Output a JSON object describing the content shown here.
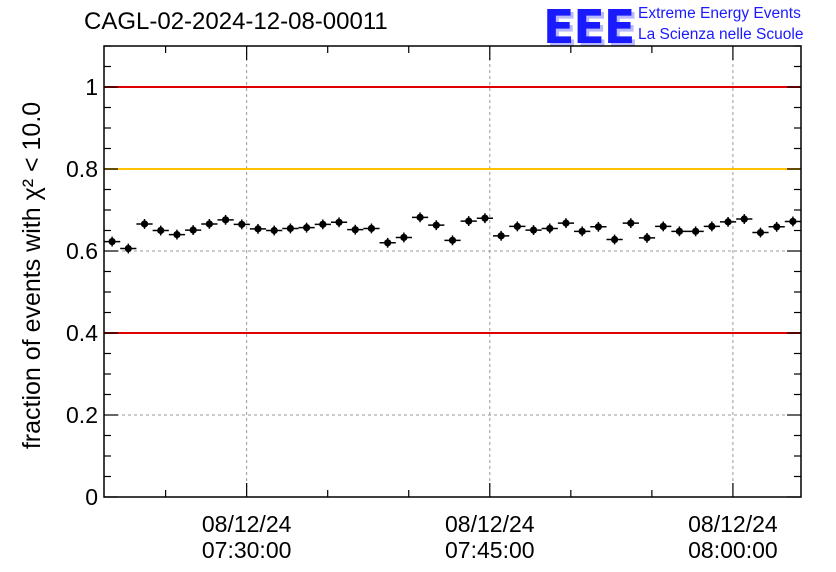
{
  "header": {
    "title": "CAGL-02-2024-12-08-00011",
    "logo_mark": "EEE",
    "logo_line1": "Extreme Energy Events",
    "logo_line2": "La Scienza nelle Scuole"
  },
  "colors": {
    "limit_red": "#e00000",
    "limit_orange": "#ffc000",
    "marker": "#000000",
    "logo_blue": "#1a1aff"
  },
  "chart_data": {
    "type": "scatter",
    "title": "CAGL-02-2024-12-08-00011",
    "ylabel": "fraction of events with χ² < 10.0",
    "ylim": [
      0,
      1.1
    ],
    "xlim": [
      "07:21:12",
      "08:04:12"
    ],
    "grid": true,
    "y_ticks": [
      0,
      0.2,
      0.4,
      0.6,
      0.8,
      1
    ],
    "y_tick_labels": [
      "0",
      "0.2",
      "0.4",
      "0.6",
      "0.8",
      "1"
    ],
    "x_ticks": [
      {
        "time": "07:30:00",
        "date": "08/12/24"
      },
      {
        "time": "07:45:00",
        "date": "08/12/24"
      },
      {
        "time": "08:00:00",
        "date": "08/12/24"
      }
    ],
    "reference_lines": [
      {
        "y": 1.0,
        "color": "#e00000"
      },
      {
        "y": 0.8,
        "color": "#ffc000"
      },
      {
        "y": 0.4,
        "color": "#e00000"
      }
    ],
    "bin_width_minutes": 1,
    "series": [
      {
        "x": [
          "07:21:42",
          "07:22:42",
          "07:23:42",
          "07:24:42",
          "07:25:42",
          "07:26:42",
          "07:27:42",
          "07:28:42",
          "07:29:42",
          "07:30:42",
          "07:31:42",
          "07:32:42",
          "07:33:42",
          "07:34:42",
          "07:35:42",
          "07:36:42",
          "07:37:42",
          "07:38:42",
          "07:39:42",
          "07:40:42",
          "07:41:42",
          "07:42:42",
          "07:43:42",
          "07:44:42",
          "07:45:42",
          "07:46:42",
          "07:47:42",
          "07:48:42",
          "07:49:42",
          "07:50:42",
          "07:51:42",
          "07:52:42",
          "07:53:42",
          "07:54:42",
          "07:55:42",
          "07:56:42",
          "07:57:42",
          "07:58:42",
          "07:59:42",
          "08:00:42",
          "08:01:42",
          "08:02:42",
          "08:03:42"
        ],
        "y": [
          0.623,
          0.606,
          0.666,
          0.65,
          0.64,
          0.651,
          0.666,
          0.676,
          0.665,
          0.654,
          0.65,
          0.655,
          0.657,
          0.665,
          0.67,
          0.652,
          0.655,
          0.62,
          0.633,
          0.682,
          0.663,
          0.626,
          0.673,
          0.68,
          0.637,
          0.66,
          0.651,
          0.655,
          0.668,
          0.648,
          0.659,
          0.628,
          0.668,
          0.632,
          0.66,
          0.648,
          0.648,
          0.66,
          0.671,
          0.678,
          0.645,
          0.659,
          0.672
        ],
        "yerr": 0.012
      }
    ]
  }
}
